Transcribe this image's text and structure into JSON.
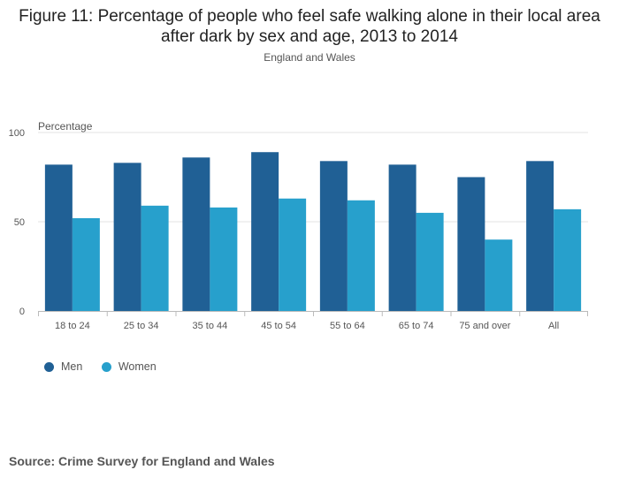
{
  "chart_data": {
    "type": "bar",
    "title": "Figure 11: Percentage of people who feel safe walking alone in their local area after dark by sex and age, 2013 to 2014",
    "subtitle": "England and Wales",
    "ylabel": "Percentage",
    "xlabel": "",
    "ylim": [
      0,
      100
    ],
    "yticks": [
      0,
      50,
      100
    ],
    "grid": true,
    "legend_position": "bottom-left",
    "categories": [
      "18 to 24",
      "25 to 34",
      "35 to 44",
      "45 to 54",
      "55 to 64",
      "65 to 74",
      "75 and over",
      "All"
    ],
    "series": [
      {
        "name": "Men",
        "color": "#206095",
        "values": [
          82,
          83,
          86,
          89,
          84,
          82,
          75,
          84
        ]
      },
      {
        "name": "Women",
        "color": "#27a0cc",
        "values": [
          52,
          59,
          58,
          63,
          62,
          55,
          40,
          57
        ]
      }
    ]
  },
  "source": "Source: Crime Survey for England and Wales"
}
